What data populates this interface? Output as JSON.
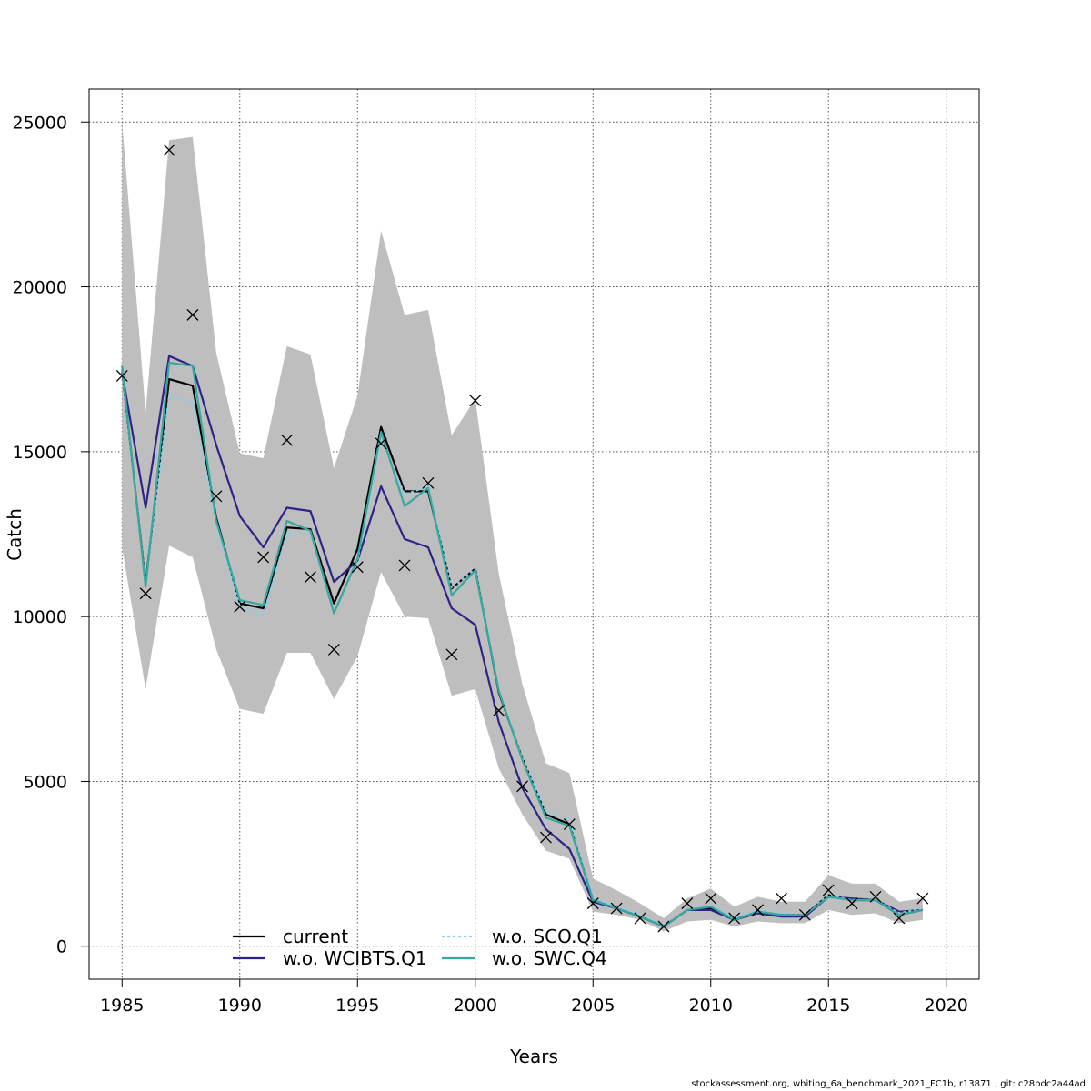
{
  "chart_data": {
    "type": "line",
    "xlabel": "Years",
    "ylabel": "Catch",
    "xlim": [
      1983.6,
      2021.4
    ],
    "ylim": [
      -1000,
      26000
    ],
    "x_ticks": [
      1985,
      1990,
      1995,
      2000,
      2005,
      2010,
      2015,
      2020
    ],
    "y_ticks": [
      0,
      5000,
      10000,
      15000,
      20000,
      25000
    ],
    "grid": true,
    "legend_position": "bottom-left",
    "x": [
      1985,
      1986,
      1987,
      1988,
      1989,
      1990,
      1991,
      1992,
      1993,
      1994,
      1995,
      1996,
      1997,
      1998,
      1999,
      2000,
      2001,
      2002,
      2003,
      2004,
      2005,
      2006,
      2007,
      2008,
      2009,
      2010,
      2011,
      2012,
      2013,
      2014,
      2015,
      2016,
      2017,
      2018,
      2019
    ],
    "confidence_band": {
      "color": "#bebebe",
      "lower": [
        12100,
        7800,
        12150,
        11800,
        9000,
        7200,
        7050,
        8900,
        8900,
        7500,
        8800,
        11350,
        10000,
        9950,
        7600,
        7800,
        5400,
        4000,
        2900,
        2650,
        1050,
        950,
        800,
        450,
        750,
        800,
        600,
        750,
        700,
        700,
        1100,
        950,
        1000,
        700,
        800
      ],
      "upper": [
        25000,
        16200,
        24450,
        24550,
        18000,
        14950,
        14800,
        18200,
        17950,
        14500,
        16700,
        21700,
        19150,
        19300,
        15500,
        16600,
        11300,
        7950,
        5550,
        5250,
        2050,
        1700,
        1300,
        850,
        1450,
        1750,
        1200,
        1500,
        1350,
        1350,
        2150,
        1900,
        1900,
        1350,
        1450
      ]
    },
    "series": [
      {
        "name": "current",
        "color": "#000000",
        "dash": "",
        "values": [
          17500,
          11000,
          17200,
          17000,
          13000,
          10400,
          10250,
          12700,
          12650,
          10400,
          12050,
          15750,
          13800,
          13800,
          10850,
          11450,
          7700,
          5700,
          4000,
          3700,
          1400,
          1150,
          900,
          600,
          1100,
          1150,
          800,
          1050,
          950,
          950,
          1550,
          1400,
          1400,
          950,
          1100
        ]
      },
      {
        "name": "w.o. WCIBTS.Q1",
        "color": "#2e2486",
        "dash": "",
        "values": [
          17400,
          13300,
          17900,
          17600,
          15200,
          13050,
          12100,
          13300,
          13200,
          11050,
          11700,
          13950,
          12350,
          12100,
          10250,
          9750,
          6800,
          4800,
          3550,
          2950,
          1350,
          1150,
          900,
          600,
          1100,
          1100,
          800,
          1000,
          900,
          900,
          1500,
          1450,
          1400,
          1050,
          1100
        ]
      },
      {
        "name": "w.o. SCO.Q1",
        "color": "#87ceeb",
        "dash": "3,3",
        "values": [
          17500,
          10950,
          16700,
          16500,
          12800,
          10300,
          10050,
          12500,
          12500,
          10100,
          11700,
          15400,
          13700,
          13950,
          10850,
          11450,
          7750,
          5700,
          4100,
          3850,
          1450,
          1200,
          950,
          650,
          1100,
          1250,
          850,
          1100,
          1000,
          950,
          1550,
          1400,
          1400,
          1000,
          1150
        ]
      },
      {
        "name": "w.o. SWC.Q4",
        "color": "#36a8a0",
        "dash": "",
        "values": [
          17600,
          10900,
          17700,
          17600,
          12900,
          10500,
          10350,
          12900,
          12600,
          10100,
          11750,
          15600,
          13350,
          13900,
          10650,
          11400,
          7750,
          5650,
          3900,
          3650,
          1400,
          1150,
          900,
          600,
          1100,
          1200,
          800,
          1050,
          950,
          950,
          1500,
          1400,
          1400,
          950,
          1100
        ]
      }
    ],
    "observations": {
      "marker": "x",
      "values": [
        17300,
        10700,
        24150,
        19150,
        13650,
        10300,
        11800,
        15350,
        11200,
        9000,
        11500,
        15250,
        11550,
        14050,
        8850,
        16550,
        7150,
        4850,
        3300,
        3700,
        1300,
        1150,
        850,
        600,
        1300,
        1450,
        850,
        1100,
        1450,
        950,
        1700,
        1300,
        1500,
        850,
        1450
      ]
    }
  },
  "footer_text": "stockassessment.org, whiting_6a_benchmark_2021_FC1b, r13871 , git: c28bdc2a44ad"
}
